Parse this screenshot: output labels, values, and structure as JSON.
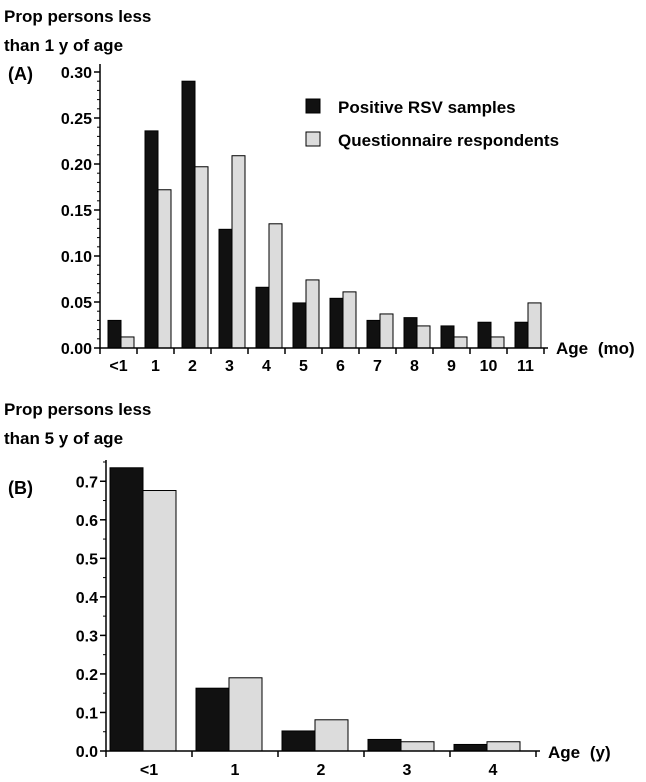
{
  "colors": {
    "series_dark": "#111111",
    "series_light": "#dcdcdc",
    "axis": "#000000"
  },
  "chart_data": [
    {
      "panel": "(A)",
      "type": "bar",
      "ylabel_lines": [
        "Prop persons less",
        "than 1 y of age"
      ],
      "x_title": "Age",
      "x_unit": "(mo)",
      "categories": [
        "<1",
        "1",
        "2",
        "3",
        "4",
        "5",
        "6",
        "7",
        "8",
        "9",
        "10",
        "11"
      ],
      "series": [
        {
          "name": "Positive RSV samples",
          "color": "#111111",
          "values": [
            0.03,
            0.236,
            0.29,
            0.129,
            0.066,
            0.049,
            0.054,
            0.03,
            0.033,
            0.024,
            0.028,
            0.028
          ]
        },
        {
          "name": "Questionnaire respondents",
          "color": "#dcdcdc",
          "values": [
            0.012,
            0.172,
            0.197,
            0.209,
            0.135,
            0.074,
            0.061,
            0.037,
            0.024,
            0.012,
            0.012,
            0.049
          ]
        }
      ],
      "ylim": [
        0,
        0.3
      ],
      "yticks": [
        "0.00",
        "0.05",
        "0.10",
        "0.15",
        "0.20",
        "0.25",
        "0.30"
      ],
      "grid": false,
      "legend_position": "top-right"
    },
    {
      "panel": "(B)",
      "type": "bar",
      "ylabel_lines": [
        "Prop persons less",
        "than 5 y of age"
      ],
      "x_title": "Age",
      "x_unit": "(y)",
      "categories": [
        "<1",
        "1",
        "2",
        "3",
        "4"
      ],
      "series": [
        {
          "name": "Positive RSV samples",
          "color": "#111111",
          "values": [
            0.735,
            0.163,
            0.052,
            0.03,
            0.017
          ]
        },
        {
          "name": "Questionnaire respondents",
          "color": "#dcdcdc",
          "values": [
            0.676,
            0.19,
            0.081,
            0.024,
            0.024
          ]
        }
      ],
      "ylim": [
        0,
        0.75
      ],
      "yticks": [
        "0.0",
        "0.1",
        "0.2",
        "0.3",
        "0.4",
        "0.5",
        "0.6",
        "0.7"
      ],
      "grid": false,
      "legend_position": "none"
    }
  ]
}
